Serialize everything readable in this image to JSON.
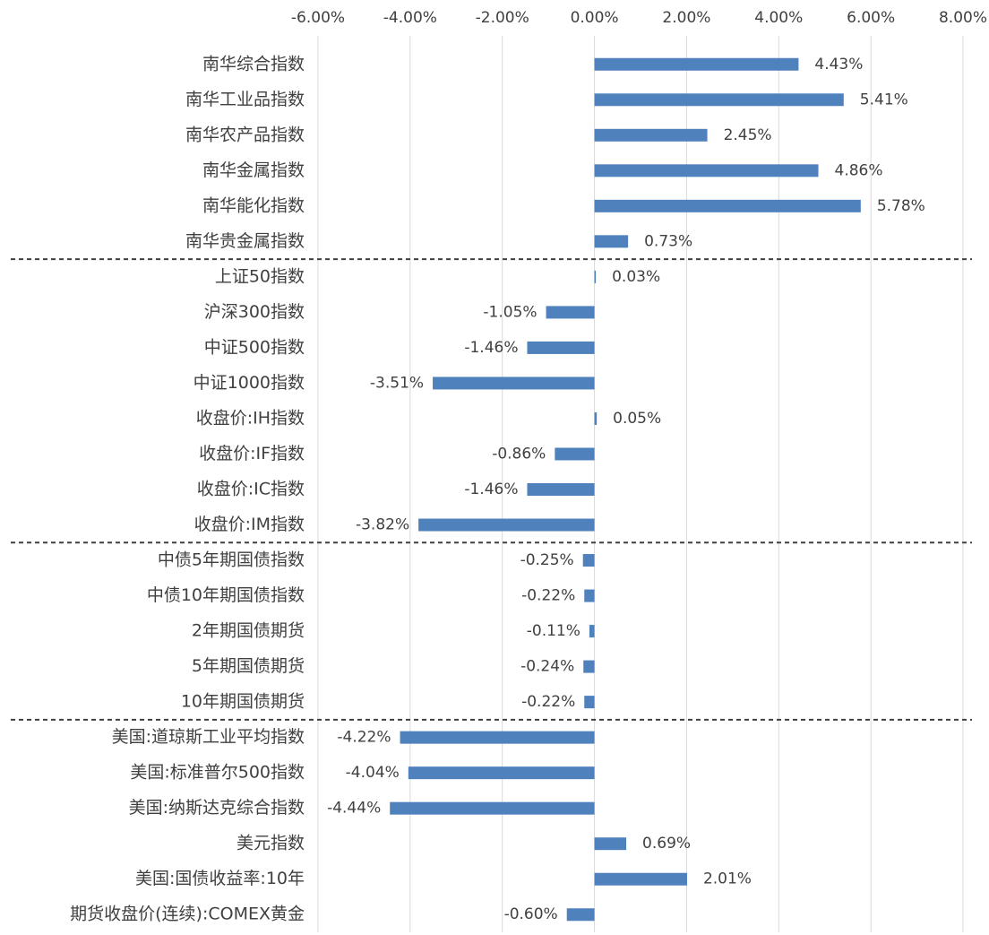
{
  "chart_data": {
    "type": "hbar",
    "color": "#4f81bd",
    "grid": true,
    "categories": [
      "南华综合指数",
      "南华工业品指数",
      "南华农产品指数",
      "南华金属指数",
      "南华能化指数",
      "南华贵金属指数",
      "上证50指数",
      "沪深300指数",
      "中证500指数",
      "中证1000指数",
      "收盘价:IH指数",
      "收盘价:IF指数",
      "收盘价:IC指数",
      "收盘价:IM指数",
      "中债5年期国债指数",
      "中债10年期国债指数",
      "2年期国债期货",
      "5年期国债期货",
      "10年期国债期货",
      "美国:道琼斯工业平均指数",
      "美国:标准普尔500指数",
      "美国:纳斯达克综合指数",
      "美元指数",
      "美国:国债收益率:10年",
      "期货收盘价(连续):COMEX黄金"
    ],
    "values": [
      4.43,
      5.41,
      2.45,
      4.86,
      5.78,
      0.73,
      0.03,
      -1.05,
      -1.46,
      -3.51,
      0.05,
      -0.86,
      -1.46,
      -3.82,
      -0.25,
      -0.22,
      -0.11,
      -0.24,
      -0.22,
      -4.22,
      -4.04,
      -4.44,
      0.69,
      2.01,
      -0.6
    ],
    "value_labels": [
      "4.43%",
      "5.41%",
      "2.45%",
      "4.86%",
      "5.78%",
      "0.73%",
      "0.03%",
      "-1.05%",
      "-1.46%",
      "-3.51%",
      "0.05%",
      "-0.86%",
      "-1.46%",
      "-3.82%",
      "-0.25%",
      "-0.22%",
      "-0.11%",
      "-0.24%",
      "-0.22%",
      "-4.22%",
      "-4.04%",
      "-4.44%",
      "0.69%",
      "2.01%",
      "-0.60%"
    ],
    "xlim": [
      -6,
      8
    ],
    "xticks": [
      {
        "value": -6,
        "label": "-6.00%"
      },
      {
        "value": -4,
        "label": "-4.00%"
      },
      {
        "value": -2,
        "label": "-2.00%"
      },
      {
        "value": 0,
        "label": "0.00%"
      },
      {
        "value": 2,
        "label": "2.00%"
      },
      {
        "value": 4,
        "label": "4.00%"
      },
      {
        "value": 6,
        "label": "6.00%"
      },
      {
        "value": 8,
        "label": "8.00%"
      }
    ]
  }
}
